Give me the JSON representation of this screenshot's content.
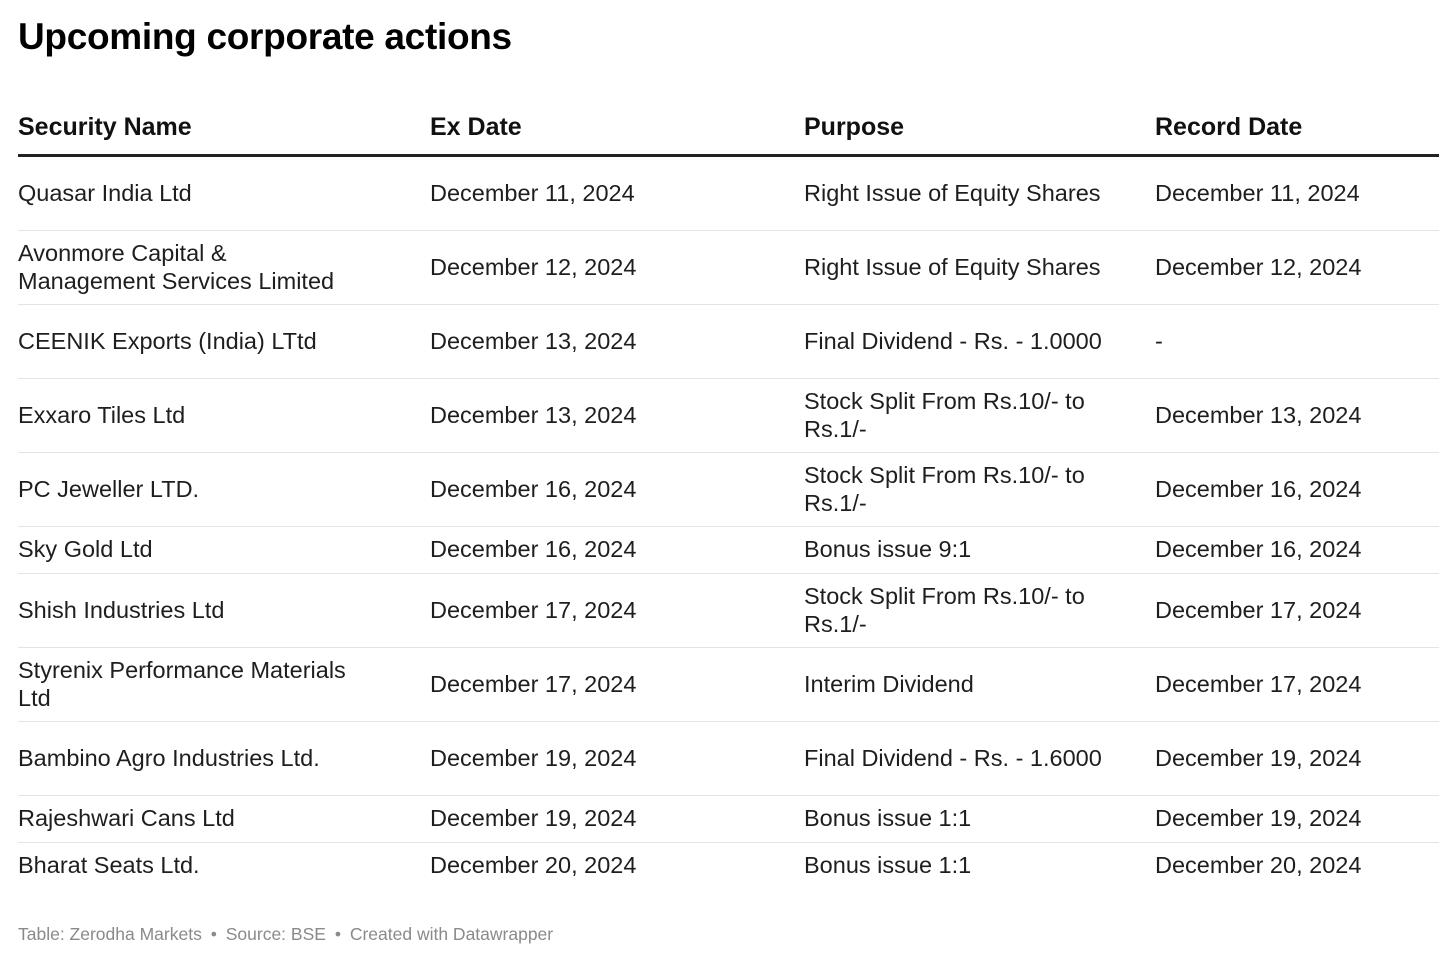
{
  "title": "Upcoming corporate actions",
  "columns": [
    "Security Name",
    "Ex Date",
    "Purpose",
    "Record Date"
  ],
  "rows": [
    {
      "security": "Quasar India Ltd",
      "ex_date": "December 11, 2024",
      "purpose": "Right Issue of Equity Shares",
      "record_date": "December 11, 2024"
    },
    {
      "security": "Avonmore Capital & Management Services Limited",
      "ex_date": "December 12, 2024",
      "purpose": "Right Issue of Equity Shares",
      "record_date": "December 12, 2024"
    },
    {
      "security": "CEENIK Exports (India) LTtd",
      "ex_date": "December 13, 2024",
      "purpose": "Final Dividend - Rs. - 1.0000",
      "record_date": "-"
    },
    {
      "security": "Exxaro Tiles Ltd",
      "ex_date": "December 13, 2024",
      "purpose": "Stock Split From Rs.10/- to Rs.1/-",
      "record_date": "December 13, 2024"
    },
    {
      "security": "PC Jeweller LTD.",
      "ex_date": "December 16, 2024",
      "purpose": "Stock Split From Rs.10/- to Rs.1/-",
      "record_date": "December 16, 2024"
    },
    {
      "security": "Sky Gold Ltd",
      "ex_date": "December 16, 2024",
      "purpose": "Bonus issue 9:1",
      "record_date": "December 16, 2024"
    },
    {
      "security": "Shish Industries Ltd",
      "ex_date": "December 17, 2024",
      "purpose": "Stock Split From Rs.10/- to Rs.1/-",
      "record_date": "December 17, 2024"
    },
    {
      "security": "Styrenix Performance Materials Ltd",
      "ex_date": "December 17, 2024",
      "purpose": "Interim Dividend",
      "record_date": "December 17, 2024"
    },
    {
      "security": "Bambino Agro Industries Ltd.",
      "ex_date": "December 19, 2024",
      "purpose": "Final Dividend - Rs. - 1.6000",
      "record_date": "December 19, 2024"
    },
    {
      "security": "Rajeshwari Cans Ltd",
      "ex_date": "December 19, 2024",
      "purpose": "Bonus issue 1:1",
      "record_date": "December 19, 2024"
    },
    {
      "security": "Bharat Seats Ltd.",
      "ex_date": "December 20, 2024",
      "purpose": "Bonus issue 1:1",
      "record_date": "December 20, 2024"
    }
  ],
  "footer": {
    "table_credit": "Table: Zerodha Markets",
    "source": "Source: BSE",
    "tool": "Created with Datawrapper",
    "separator": "•"
  }
}
